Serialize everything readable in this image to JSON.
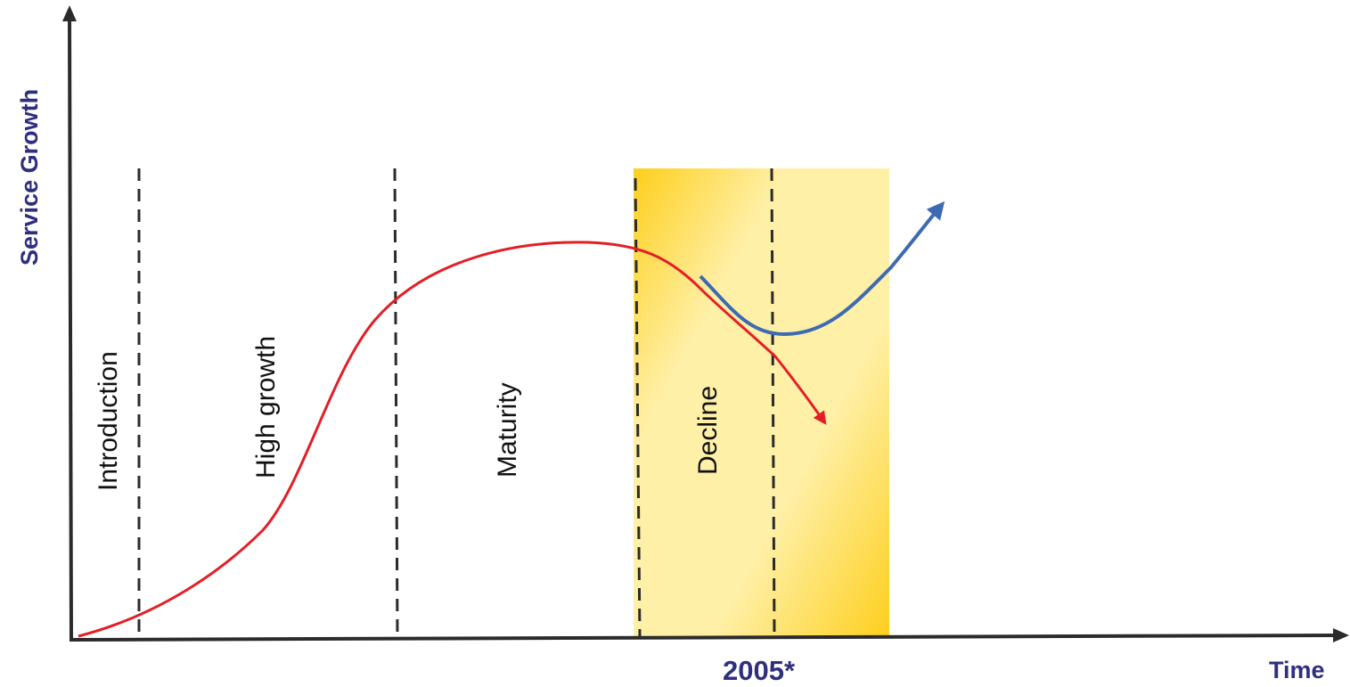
{
  "diagram": {
    "y_axis_label": "Service Growth",
    "x_axis_label": "Time",
    "highlight_year": "2005*",
    "stages": [
      {
        "id": "introduction",
        "label": "Introduction"
      },
      {
        "id": "high-growth",
        "label": "High growth"
      },
      {
        "id": "maturity",
        "label": "Maturity"
      },
      {
        "id": "decline",
        "label": "Decline"
      }
    ],
    "curves": [
      {
        "id": "decline-curve",
        "color": "#e41e26"
      },
      {
        "id": "renewal-curve",
        "color": "#3d6ab3"
      }
    ],
    "colors": {
      "axis": "#2b2b2b",
      "highlight_band": "#fdd020",
      "highlight_band_light": "#fff2b0",
      "label_text": "#2f2f7f"
    }
  }
}
